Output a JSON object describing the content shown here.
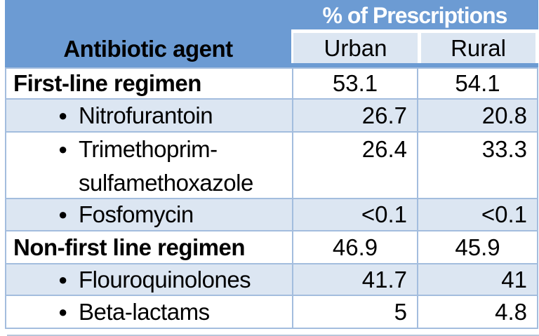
{
  "chart_data": {
    "type": "table",
    "title": "% of Prescriptions",
    "columns": [
      "Antibiotic agent",
      "Urban",
      "Rural"
    ],
    "header": {
      "group_label": "% of Prescriptions",
      "agent_label": "Antibiotic agent",
      "urban_label": "Urban",
      "rural_label": "Rural"
    },
    "rows": [
      {
        "label": "First-line regimen",
        "style": "category",
        "urban": "53.1",
        "rural": "54.1"
      },
      {
        "label": "Nitrofurantoin",
        "style": "bullet",
        "urban": "26.7",
        "rural": "20.8"
      },
      {
        "label": "Trimethoprim-sulfamethoxazole",
        "style": "bullet",
        "urban": "26.4",
        "rural": "33.3"
      },
      {
        "label": "Fosfomycin",
        "style": "bullet",
        "urban": "<0.1",
        "rural": "<0.1"
      },
      {
        "label": "Non-first line regimen",
        "style": "category",
        "urban": "46.9",
        "rural": "45.9"
      },
      {
        "label": "Flouroquinolones",
        "style": "bullet",
        "urban": "41.7",
        "rural": "41"
      },
      {
        "label": "Beta-lactams",
        "style": "bullet",
        "urban": "5",
        "rural": "4.8"
      }
    ],
    "colors": {
      "header_blue": "#6c9bd3",
      "shaded_row_blue": "#dce6f2",
      "border_blue": "#a3bdde",
      "title_text": "#ffffff",
      "body_text": "#000000"
    }
  }
}
